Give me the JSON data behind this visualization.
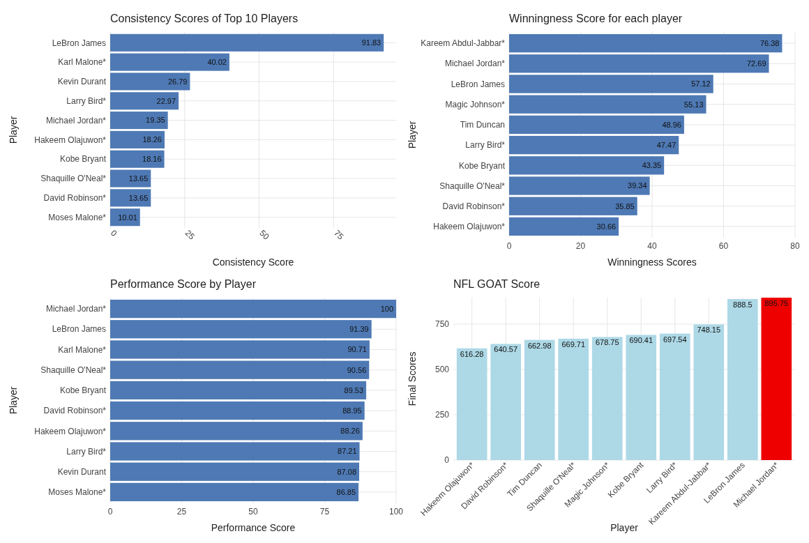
{
  "chart_data": [
    {
      "type": "bar",
      "orientation": "horizontal",
      "title": "Consistency Scores of Top 10 Players",
      "xlabel": "Consistency Score",
      "ylabel": "Player",
      "categories": [
        "LeBron James",
        "Karl Malone*",
        "Kevin Durant",
        "Larry Bird*",
        "Michael Jordan*",
        "Hakeem Olajuwon*",
        "Kobe Bryant",
        "Shaquille O'Neal*",
        "David Robinson*",
        "Moses Malone*"
      ],
      "values": [
        91.83,
        40.02,
        26.79,
        22.97,
        19.35,
        18.26,
        18.16,
        13.65,
        13.65,
        10.01
      ],
      "color": "#4e79b4",
      "xlim": [
        0,
        96
      ],
      "xticks": [
        0,
        25,
        50,
        75
      ],
      "grid": true,
      "data_labels": true
    },
    {
      "type": "bar",
      "orientation": "horizontal",
      "title": "Winningness Score for each player",
      "xlabel": "Winningness Scores",
      "ylabel": "Player",
      "categories": [
        "Kareem Abdul-Jabbar*",
        "Michael Jordan*",
        "LeBron James",
        "Magic Johnson*",
        "Tim Duncan",
        "Larry Bird*",
        "Kobe Bryant",
        "Shaquille O'Neal*",
        "David Robinson*",
        "Hakeem Olajuwon*"
      ],
      "values": [
        76.38,
        72.69,
        57.12,
        55.13,
        48.96,
        47.47,
        43.35,
        39.34,
        35.85,
        30.66
      ],
      "color": "#4e79b4",
      "xlim": [
        0,
        80
      ],
      "xticks": [
        0,
        20,
        40,
        60,
        80
      ],
      "grid": true,
      "data_labels": true
    },
    {
      "type": "bar",
      "orientation": "horizontal",
      "title": "Performance Score by Player",
      "xlabel": "Performance Score",
      "ylabel": "Player",
      "categories": [
        "Michael Jordan*",
        "LeBron James",
        "Karl Malone*",
        "Shaquille O'Neal*",
        "Kobe Bryant",
        "David Robinson*",
        "Hakeem Olajuwon*",
        "Larry Bird*",
        "Kevin Durant",
        "Moses Malone*"
      ],
      "values": [
        100,
        91.39,
        90.71,
        90.56,
        89.53,
        88.95,
        88.26,
        87.21,
        87.08,
        86.85
      ],
      "color": "#4e79b4",
      "xlim": [
        0,
        100
      ],
      "xticks": [
        0,
        25,
        50,
        75,
        100
      ],
      "grid": true,
      "data_labels": true
    },
    {
      "type": "bar",
      "title": "NFL GOAT Score",
      "xlabel": "Player",
      "ylabel": "Final Scores",
      "categories": [
        "Hakeem Olajuwon*",
        "David Robinson*",
        "Tim Duncan",
        "Shaquille O'Neal*",
        "Magic Johnson*",
        "Kobe Bryant",
        "Larry Bird*",
        "Kareem Abdul-Jabbar*",
        "LeBron James",
        "Michael Jordan*"
      ],
      "values": [
        616.28,
        640.57,
        662.98,
        669.71,
        678.75,
        690.41,
        697.54,
        748.15,
        888.5,
        895.75
      ],
      "colors": [
        "#add8e6",
        "#add8e6",
        "#add8e6",
        "#add8e6",
        "#add8e6",
        "#add8e6",
        "#add8e6",
        "#add8e6",
        "#add8e6",
        "#ee0000"
      ],
      "ylim": [
        0,
        896
      ],
      "yticks": [
        0,
        250,
        500,
        750
      ],
      "grid": true,
      "data_labels": true
    }
  ]
}
